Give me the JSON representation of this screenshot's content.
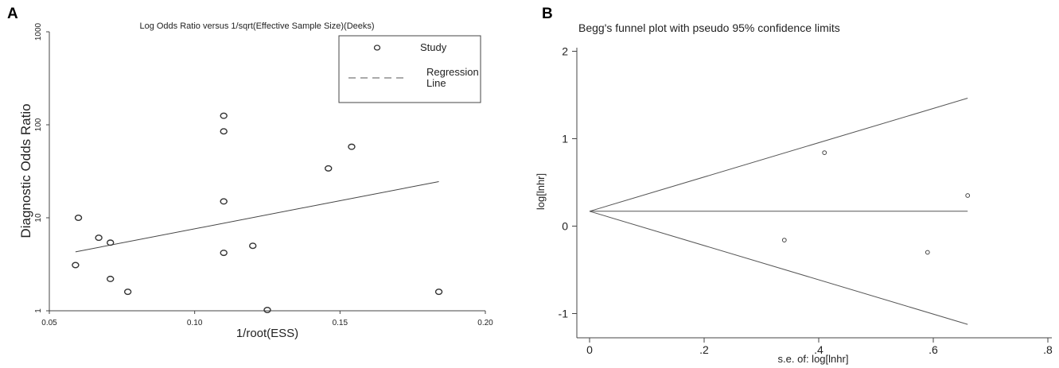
{
  "panels": {
    "a": {
      "letter": "A"
    },
    "b": {
      "letter": "B"
    }
  },
  "chart_data": [
    {
      "type": "scatter",
      "title": "Log Odds Ratio versus 1/sqrt(Effective Sample Size)(Deeks)",
      "xlabel": "1/root(ESS)",
      "ylabel": "Diagnostic Odds Ratio",
      "xlim": [
        0.05,
        0.2
      ],
      "ylim": [
        1,
        1000
      ],
      "yscale": "log",
      "xticks": [
        0.05,
        0.1,
        0.15,
        0.2
      ],
      "xtick_labels": [
        "0.05",
        "0.10",
        "0.15",
        "0.20"
      ],
      "yticks": [
        1,
        10,
        100,
        1000
      ],
      "ytick_labels": [
        "1",
        "10",
        "100",
        "1000"
      ],
      "legend_position": "top-right",
      "legend": {
        "study_label": "Study",
        "regression_label_line1": "Regression",
        "regression_label_line2": "Line"
      },
      "series": [
        {
          "name": "Study",
          "x": [
            0.059,
            0.06,
            0.067,
            0.071,
            0.071,
            0.077,
            0.11,
            0.11,
            0.11,
            0.11,
            0.12,
            0.125,
            0.146,
            0.154,
            0.184
          ],
          "y": [
            3.1,
            10.0,
            6.1,
            5.4,
            2.2,
            1.6,
            125,
            85,
            15,
            4.2,
            5.0,
            1.02,
            34,
            58,
            1.6
          ]
        }
      ],
      "regression_line": {
        "x": [
          0.059,
          0.184
        ],
        "y": [
          4.3,
          24.5
        ]
      },
      "grid": false
    },
    {
      "type": "scatter",
      "title": "Begg's funnel plot with pseudo 95% confidence limits",
      "xlabel": "s.e. of: log[lnhr]",
      "ylabel": "log[lnhr]",
      "xlim": [
        0,
        0.8
      ],
      "ylim": [
        -1.2,
        2.1
      ],
      "xticks": [
        0,
        0.2,
        0.4,
        0.6,
        0.8
      ],
      "xtick_labels": [
        "0",
        ".2",
        ".4",
        ".6",
        ".8"
      ],
      "yticks": [
        -1,
        0,
        1,
        2
      ],
      "ytick_labels": [
        "-1",
        "0",
        "1",
        "2"
      ],
      "series": [
        {
          "x": [
            0.34,
            0.41,
            0.59,
            0.66
          ],
          "y": [
            -0.16,
            0.84,
            -0.3,
            0.35
          ]
        }
      ],
      "pooled_estimate": 0.17,
      "funnel_max_se": 0.66,
      "grid": false
    }
  ]
}
